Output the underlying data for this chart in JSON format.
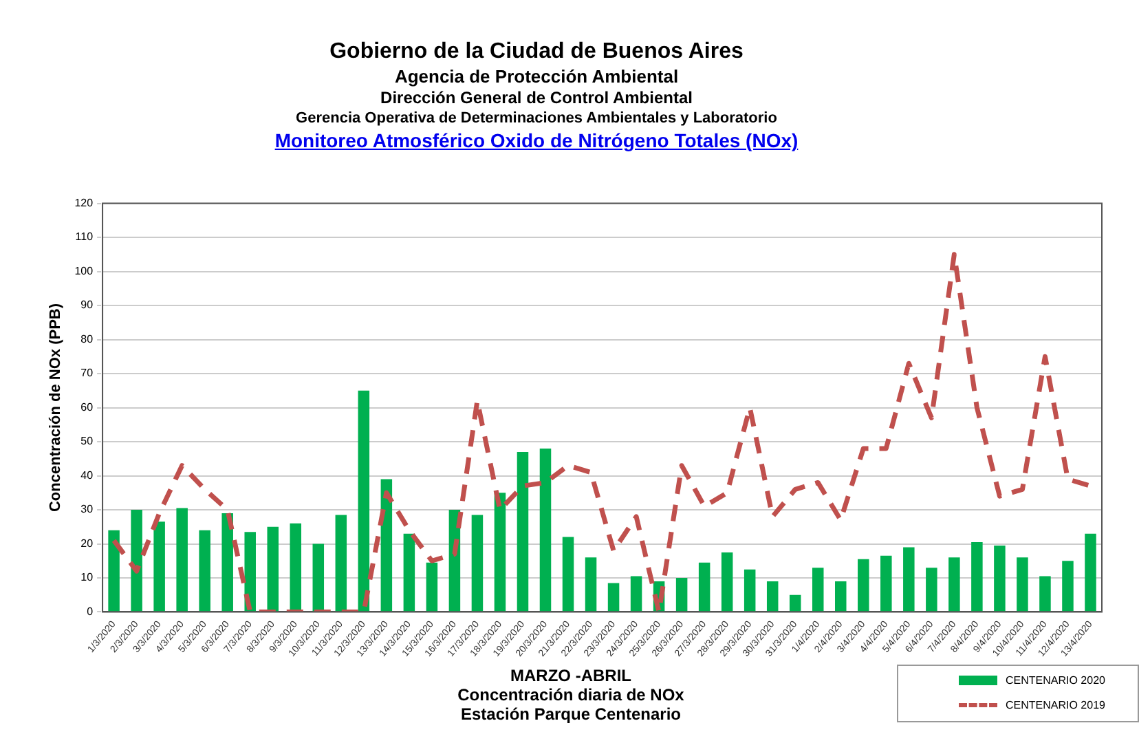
{
  "chart_data": {
    "type": "bar",
    "title": "Gobierno de la Ciudad de Buenos Aires",
    "subtitle": "Monitoreo Atmosférico Oxido de Nitrógeno Totales (NOx)",
    "annotations": [
      "Agencia de Protección Ambiental",
      "Dirección General de Control Ambiental",
      "Gerencia Operativa de Determinaciones Ambientales y Laboratorio",
      "Concentración diaria de NOx",
      "Estación Parque Centenario"
    ],
    "xlabel": "MARZO -ABRIL",
    "ylabel": "Concentración de NOx (PPB)",
    "categories": [
      "1/3/2020",
      "2/3/2020",
      "3/3/2020",
      "4/3/2020",
      "5/3/2020",
      "6/3/2020",
      "7/3/2020",
      "8/3/2020",
      "9/3/2020",
      "10/3/2020",
      "11/3/2020",
      "12/3/2020",
      "13/3/2020",
      "14/3/2020",
      "15/3/2020",
      "16/3/2020",
      "17/3/2020",
      "18/3/2020",
      "19/3/2020",
      "20/3/2020",
      "21/3/2020",
      "22/3/2020",
      "23/3/2020",
      "24/3/2020",
      "25/3/2020",
      "26/3/2020",
      "27/3/2020",
      "28/3/2020",
      "29/3/2020",
      "30/3/2020",
      "31/3/2020",
      "1/4/2020",
      "2/4/2020",
      "3/4/2020",
      "4/4/2020",
      "5/4/2020",
      "6/4/2020",
      "7/4/2020",
      "8/4/2020",
      "9/4/2020",
      "10/4/2020",
      "11/4/2020",
      "12/4/2020",
      "13/4/2020"
    ],
    "series": [
      {
        "name": "CENTENARIO 2020",
        "color": "#00b050",
        "values": [
          24,
          30,
          26.5,
          30.5,
          24,
          29,
          23.5,
          25,
          26,
          20,
          28.5,
          65,
          39,
          23,
          14.5,
          30,
          28.5,
          35,
          47,
          48,
          22,
          16,
          8.5,
          10.5,
          9,
          10,
          14.5,
          17.5,
          12.5,
          9,
          5,
          13,
          9,
          15.5,
          16.5,
          19,
          13,
          16,
          20.5,
          19.5,
          16,
          10.5,
          15,
          23
        ]
      },
      {
        "name": "CENTENARIO 2019",
        "type": "line",
        "color": "#c0504d",
        "line_style": "dashed",
        "marker": "none",
        "values": [
          21,
          12,
          29,
          43,
          36,
          30,
          0,
          0,
          0,
          0,
          0,
          0,
          35,
          24,
          15,
          17,
          62,
          30,
          37,
          38,
          43,
          41,
          18,
          28,
          0,
          43,
          31,
          35,
          60,
          28,
          36,
          38,
          27,
          48,
          48,
          73,
          57,
          105,
          60,
          34,
          36,
          75,
          39,
          37
        ]
      }
    ],
    "ylim": [
      0,
      120
    ],
    "yticks": [
      0,
      10,
      20,
      30,
      40,
      50,
      60,
      70,
      80,
      90,
      100,
      110,
      120
    ],
    "grid": "y",
    "legend": "bottom right"
  }
}
